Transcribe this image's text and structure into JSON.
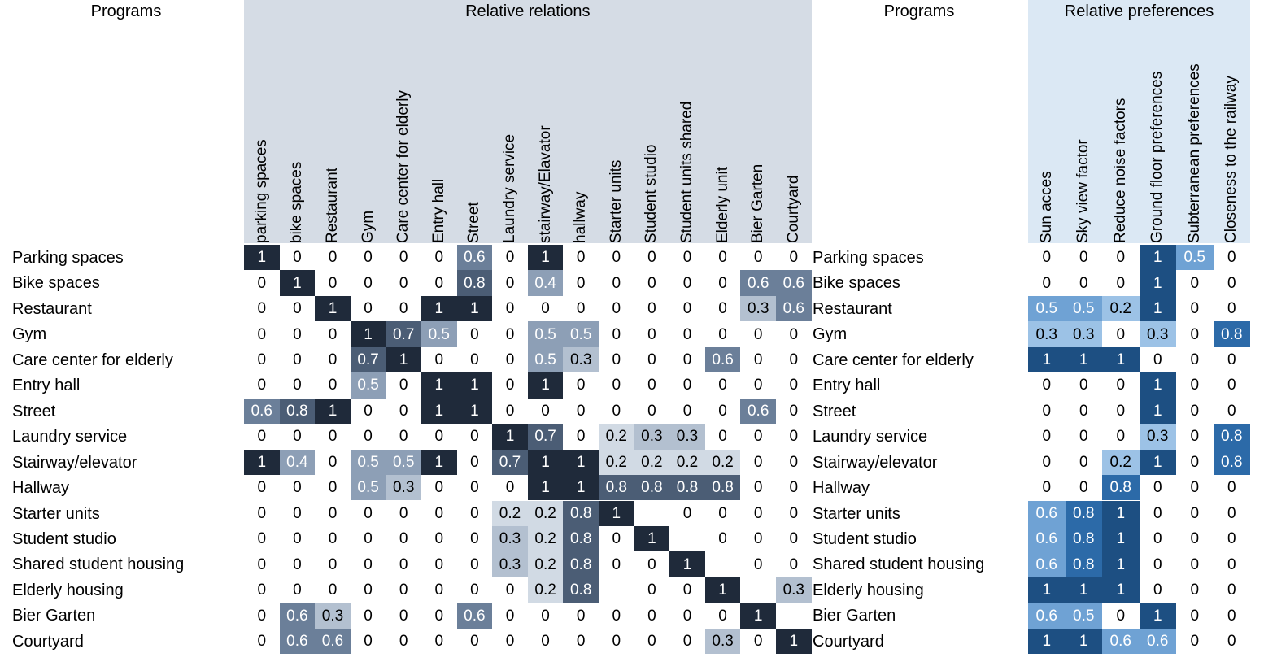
{
  "titles": {
    "programs_left": "Programs",
    "relations": "Relative relations",
    "programs_right": "Programs",
    "preferences": "Relative preferences"
  },
  "colors": {
    "relations_header_bg": "#d5dce5",
    "preferences_header_bg": "#dbe8f4",
    "relations_scale": [
      "#ffffff",
      "#d1dae4",
      "#b3c0d0",
      "#8d9fb6",
      "#6b7f99",
      "#4b5d75",
      "#1f2a3a"
    ],
    "preferences_scale": [
      "#ffffff",
      "#9cc2e6",
      "#6fa2d4",
      "#2c6aa8",
      "#1d4f82"
    ]
  },
  "chart_data": [
    {
      "type": "heatmap",
      "title": "Relative relations",
      "row_header": "Programs",
      "rows": [
        "Parking spaces",
        "Bike spaces",
        "Restaurant",
        "Gym",
        "Care center for elderly",
        "Entry hall",
        "Street",
        "Laundry service",
        "Stairway/elevator",
        "Hallway",
        "Starter units",
        "Student studio",
        "Shared student housing",
        "Elderly housing",
        "Bier Garten",
        "Courtyard"
      ],
      "columns": [
        "parking spaces",
        "bike spaces",
        "Restaurant",
        "Gym",
        "Care center for elderly",
        "Entry hall",
        "Street",
        "Laundry service",
        "stairway/Elavator",
        "hallway",
        "Starter units",
        "Student studio",
        "Student units shared",
        "Elderly unit",
        "Bier Garten",
        "Courtyard"
      ],
      "values": [
        [
          1,
          0,
          0,
          0,
          0,
          0,
          0.6,
          0,
          1,
          0,
          0,
          0,
          0,
          0,
          0,
          0
        ],
        [
          0,
          1,
          0,
          0,
          0,
          0,
          0.8,
          0,
          0.4,
          0,
          0,
          0,
          0,
          0,
          0.6,
          0.6
        ],
        [
          0,
          0,
          1,
          0,
          0,
          1,
          1,
          0,
          0,
          0,
          0,
          0,
          0,
          0,
          0.3,
          0.6
        ],
        [
          0,
          0,
          0,
          1,
          0.7,
          0.5,
          0,
          0,
          0.5,
          0.5,
          0,
          0,
          0,
          0,
          0,
          0
        ],
        [
          0,
          0,
          0,
          0.7,
          1,
          0,
          0,
          0,
          0.5,
          0.3,
          0,
          0,
          0,
          0.6,
          0,
          0
        ],
        [
          0,
          0,
          0,
          0.5,
          0,
          1,
          1,
          0,
          1,
          0,
          0,
          0,
          0,
          0,
          0,
          0
        ],
        [
          0.6,
          0.8,
          1,
          0,
          0,
          1,
          1,
          0,
          0,
          0,
          0,
          0,
          0,
          0,
          0.6,
          0
        ],
        [
          0,
          0,
          0,
          0,
          0,
          0,
          0,
          1,
          0.7,
          0,
          0.2,
          0.3,
          0.3,
          0,
          0,
          0
        ],
        [
          1,
          0.4,
          0,
          0.5,
          0.5,
          1,
          0,
          0.7,
          1,
          1,
          0.2,
          0.2,
          0.2,
          0.2,
          0,
          0
        ],
        [
          0,
          0,
          0,
          0.5,
          0.3,
          0,
          0,
          0,
          1,
          1,
          0.8,
          0.8,
          0.8,
          0.8,
          0,
          0
        ],
        [
          0,
          0,
          0,
          0,
          0,
          0,
          0,
          0.2,
          0.2,
          0.8,
          1,
          null,
          0,
          0,
          0,
          0
        ],
        [
          0,
          0,
          0,
          0,
          0,
          0,
          0,
          0.3,
          0.2,
          0.8,
          0,
          1,
          null,
          0,
          0,
          0
        ],
        [
          0,
          0,
          0,
          0,
          0,
          0,
          0,
          0.3,
          0.2,
          0.8,
          0,
          0,
          1,
          null,
          0,
          0
        ],
        [
          0,
          0,
          0,
          0,
          0,
          0,
          0,
          0,
          0.2,
          0.8,
          null,
          0,
          0,
          1,
          null,
          0.3
        ],
        [
          0,
          0.6,
          0.3,
          0,
          0,
          0,
          0.6,
          0,
          0,
          0,
          0,
          0,
          0,
          0,
          1,
          null
        ],
        [
          0,
          0.6,
          0.6,
          0,
          0,
          0,
          0,
          0,
          0,
          0,
          0,
          0,
          0,
          0.3,
          0,
          1
        ]
      ]
    },
    {
      "type": "heatmap",
      "title": "Relative preferences",
      "row_header": "Programs",
      "rows": [
        "Parking spaces",
        "Bike spaces",
        "Restaurant",
        "Gym",
        "Care center for elderly",
        "Entry hall",
        "Street",
        "Laundry service",
        "Stairway/elevator",
        "Hallway",
        "Starter units",
        "Student studio",
        "Shared student housing",
        "Elderly housing",
        "Bier Garten",
        "Courtyard"
      ],
      "columns": [
        "Sun acces",
        "Sky view factor",
        "Reduce noise factors",
        "Ground floor preferences",
        "Subterranean preferences",
        "Closeness to the railway"
      ],
      "values": [
        [
          0,
          0,
          0,
          1,
          0.5,
          0
        ],
        [
          0,
          0,
          0,
          1,
          0,
          0
        ],
        [
          0.5,
          0.5,
          0.2,
          1,
          0,
          0
        ],
        [
          0.3,
          0.3,
          0,
          0.3,
          0,
          0.8
        ],
        [
          1,
          1,
          1,
          0,
          0,
          0
        ],
        [
          0,
          0,
          0,
          1,
          0,
          0
        ],
        [
          0,
          0,
          0,
          1,
          0,
          0
        ],
        [
          0,
          0,
          0,
          0.3,
          0,
          0.8
        ],
        [
          0,
          0,
          0.2,
          1,
          0,
          0.8
        ],
        [
          0,
          0,
          0.8,
          0,
          0,
          0
        ],
        [
          0.6,
          0.8,
          1,
          0,
          0,
          0
        ],
        [
          0.6,
          0.8,
          1,
          0,
          0,
          0
        ],
        [
          0.6,
          0.8,
          1,
          0,
          0,
          0
        ],
        [
          1,
          1,
          1,
          0,
          0,
          0
        ],
        [
          0.6,
          0.5,
          0,
          1,
          0,
          0
        ],
        [
          1,
          1,
          0.6,
          0.6,
          0,
          0
        ]
      ]
    }
  ]
}
